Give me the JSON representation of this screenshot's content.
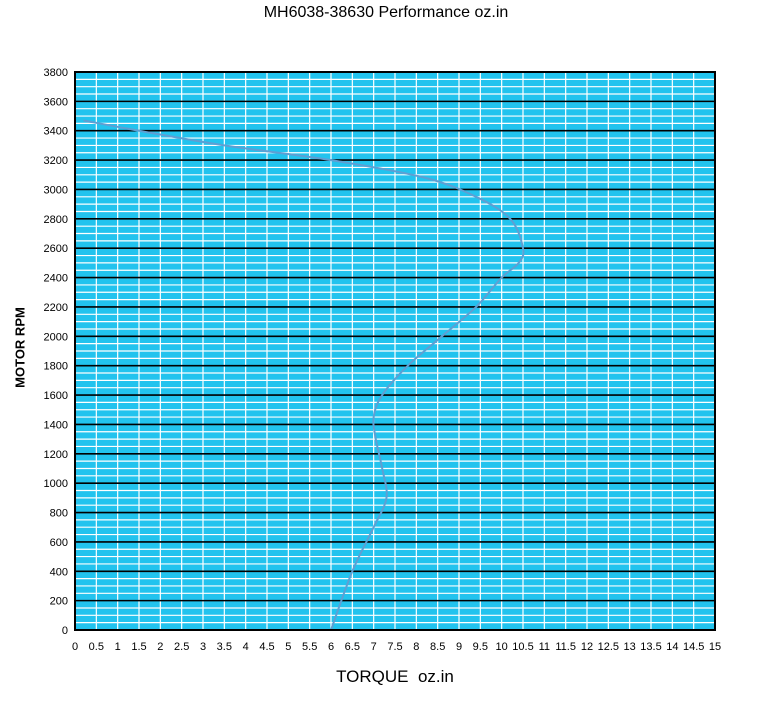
{
  "chart_data": {
    "type": "line",
    "title": "MH6038-38630 Performance oz.in",
    "xlabel": "TORQUE  oz.in",
    "ylabel": "MOTOR RPM",
    "xlim": [
      0,
      15
    ],
    "ylim": [
      0,
      3800
    ],
    "x_ticks": [
      "0",
      "0.5",
      "1",
      "1.5",
      "2",
      "2.5",
      "3",
      "3.5",
      "4",
      "4.5",
      "5",
      "5.5",
      "6",
      "6.5",
      "7",
      "7.5",
      "8",
      "8.5",
      "9",
      "9.5",
      "10",
      "10.5",
      "11",
      "11.5",
      "12",
      "12.5",
      "13",
      "13.5",
      "14",
      "14.5",
      "15"
    ],
    "y_ticks": [
      "0",
      "200",
      "400",
      "600",
      "800",
      "1000",
      "1200",
      "1400",
      "1600",
      "1800",
      "2000",
      "2200",
      "2400",
      "2600",
      "2800",
      "3000",
      "3200",
      "3400",
      "3600",
      "3800"
    ],
    "grid": true,
    "colors": {
      "background": "#22c3ee",
      "grid_major": "#000000",
      "grid_minor": "#ffffff",
      "line": "#5e9fd3"
    },
    "series": [
      {
        "x": [
          6.0,
          6.5,
          7.0,
          7.3,
          7.2,
          7.05,
          7.0,
          7.2,
          7.8,
          8.6,
          9.4,
          10.0,
          10.4,
          10.5,
          10.2,
          9.4,
          8.2,
          6.0,
          3.5,
          1.5,
          0.2
        ],
        "y": [
          0,
          400,
          700,
          900,
          1100,
          1300,
          1450,
          1600,
          1800,
          2000,
          2200,
          2400,
          2500,
          2600,
          2800,
          2950,
          3080,
          3200,
          3300,
          3400,
          3470
        ]
      }
    ]
  }
}
